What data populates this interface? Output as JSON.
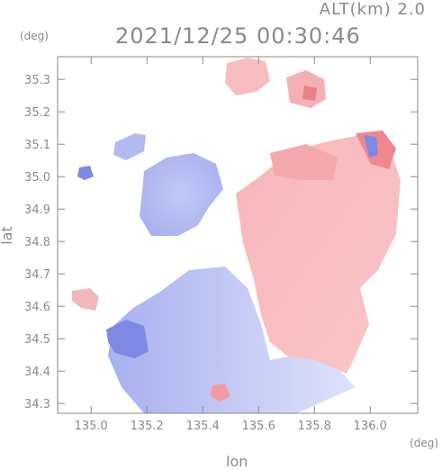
{
  "header": {
    "altitude": "ALT(km) 2.0",
    "timestamp": "2021/12/25 00:30:46"
  },
  "axes": {
    "y_unit": "(deg)",
    "x_unit": "(deg)",
    "y_label": "lat",
    "x_label": "lon",
    "x_ticks": [
      "135.0",
      "135.2",
      "135.4",
      "135.6",
      "135.8",
      "136.0"
    ],
    "x_tick_values": [
      135.0,
      135.2,
      135.4,
      135.6,
      135.8,
      136.0
    ],
    "y_ticks": [
      "35.3",
      "35.2",
      "35.1",
      "35.0",
      "34.9",
      "34.8",
      "34.7",
      "34.6",
      "34.5",
      "34.4",
      "34.3"
    ],
    "y_tick_values": [
      35.3,
      35.2,
      35.1,
      35.0,
      34.9,
      34.8,
      34.7,
      34.6,
      34.5,
      34.4,
      34.3
    ],
    "x_range": [
      134.88,
      136.17
    ],
    "y_range": [
      34.27,
      35.37
    ]
  },
  "colors": {
    "toward": "#8c95e8",
    "toward_light": "#d7dbf8",
    "away": "#f39aa0",
    "away_light": "#fbd6d8",
    "axis": "#8a8a8a"
  }
}
